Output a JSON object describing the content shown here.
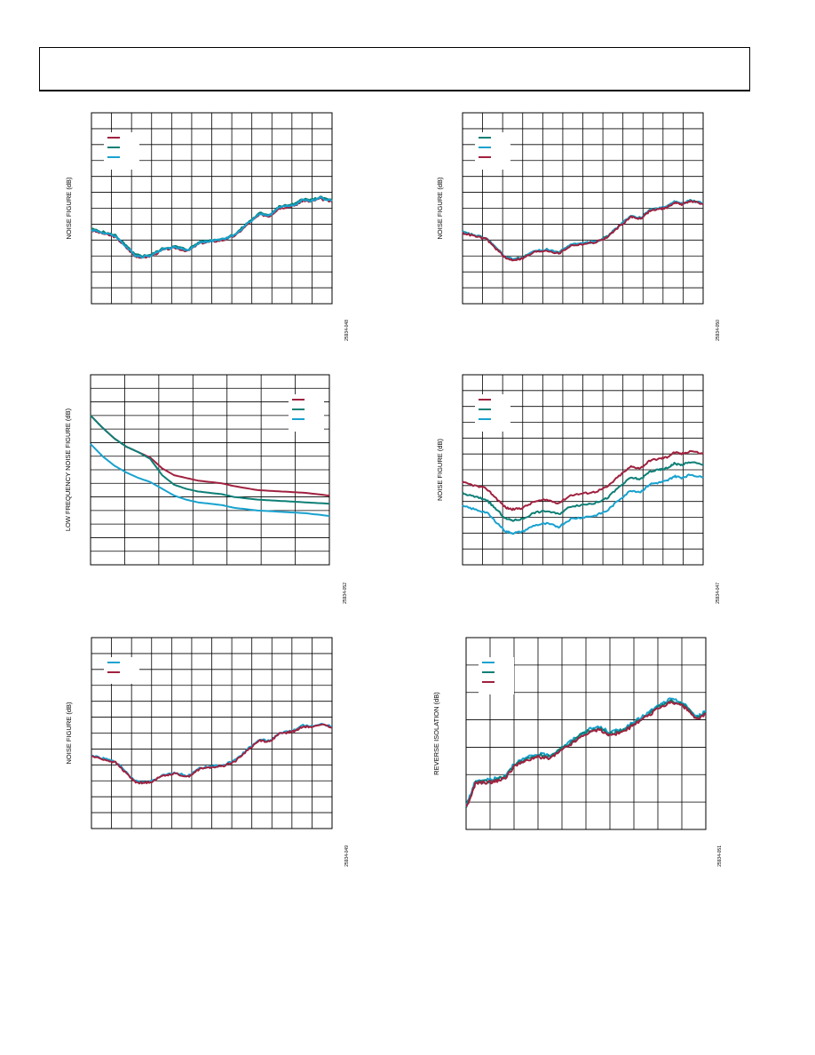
{
  "colors": {
    "red": "#a0213f",
    "green": "#0d7f76",
    "blue": "#18a2cf",
    "grid": "#000000"
  },
  "chart_data": [
    {
      "id": "top-left",
      "type": "line",
      "ylabel": "NOISE FIGURE (dB)",
      "fig_id": "25934-048",
      "grid": true,
      "rows": 12,
      "cols": 12,
      "ylim": [
        0,
        12
      ],
      "xlim": [
        0,
        1
      ],
      "legend": "top-left",
      "series": [
        {
          "color": "red",
          "x": [
            0,
            0.05,
            0.1,
            0.14,
            0.18,
            0.21,
            0.25,
            0.3,
            0.35,
            0.4,
            0.45,
            0.5,
            0.55,
            0.6,
            0.65,
            0.7,
            0.74,
            0.78,
            0.82,
            0.85,
            0.88,
            0.91,
            0.95,
            1
          ],
          "y": [
            4.6,
            4.4,
            4.2,
            3.6,
            3.0,
            2.9,
            3.0,
            3.4,
            3.5,
            3.3,
            3.8,
            3.9,
            4.0,
            4.3,
            5.0,
            5.6,
            5.5,
            6.0,
            6.1,
            6.2,
            6.5,
            6.4,
            6.6,
            6.4
          ]
        },
        {
          "color": "green",
          "x": [
            0,
            0.05,
            0.1,
            0.14,
            0.18,
            0.21,
            0.25,
            0.3,
            0.35,
            0.4,
            0.45,
            0.5,
            0.55,
            0.6,
            0.65,
            0.7,
            0.74,
            0.78,
            0.82,
            0.85,
            0.88,
            0.91,
            0.95,
            1
          ],
          "y": [
            4.7,
            4.5,
            4.3,
            3.7,
            3.1,
            3.0,
            3.1,
            3.5,
            3.6,
            3.4,
            3.9,
            4.0,
            4.1,
            4.4,
            5.1,
            5.7,
            5.6,
            6.1,
            6.2,
            6.3,
            6.6,
            6.5,
            6.7,
            6.5
          ]
        },
        {
          "color": "blue",
          "x": [
            0,
            0.05,
            0.1,
            0.14,
            0.18,
            0.21,
            0.25,
            0.3,
            0.35,
            0.4,
            0.45,
            0.5,
            0.55,
            0.6,
            0.65,
            0.7,
            0.74,
            0.78,
            0.82,
            0.85,
            0.88,
            0.91,
            0.95,
            1
          ],
          "y": [
            4.65,
            4.45,
            4.25,
            3.65,
            3.05,
            2.95,
            3.05,
            3.45,
            3.55,
            3.35,
            3.85,
            3.95,
            4.05,
            4.35,
            5.05,
            5.65,
            5.55,
            6.05,
            6.15,
            6.25,
            6.55,
            6.45,
            6.65,
            6.45
          ]
        }
      ]
    },
    {
      "id": "top-right",
      "type": "line",
      "ylabel": "NOISE FIGURE (dB)",
      "fig_id": "25934-050",
      "grid": true,
      "rows": 12,
      "cols": 12,
      "ylim": [
        0,
        12
      ],
      "xlim": [
        0,
        1
      ],
      "legend": "top-left",
      "series": [
        {
          "color": "green",
          "x": [
            0,
            0.05,
            0.1,
            0.14,
            0.18,
            0.21,
            0.25,
            0.3,
            0.35,
            0.4,
            0.45,
            0.5,
            0.55,
            0.6,
            0.65,
            0.7,
            0.74,
            0.78,
            0.82,
            0.85,
            0.88,
            0.91,
            0.95,
            1
          ],
          "y": [
            4.5,
            4.3,
            4.1,
            3.5,
            2.9,
            2.8,
            2.9,
            3.3,
            3.4,
            3.2,
            3.7,
            3.8,
            3.9,
            4.2,
            4.9,
            5.5,
            5.4,
            5.9,
            6.0,
            6.1,
            6.4,
            6.3,
            6.5,
            6.3
          ]
        },
        {
          "color": "blue",
          "x": [
            0,
            0.05,
            0.1,
            0.14,
            0.18,
            0.21,
            0.25,
            0.3,
            0.35,
            0.4,
            0.45,
            0.5,
            0.55,
            0.6,
            0.65,
            0.7,
            0.74,
            0.78,
            0.82,
            0.85,
            0.88,
            0.91,
            0.95,
            1
          ],
          "y": [
            4.5,
            4.3,
            4.1,
            3.5,
            2.9,
            2.8,
            2.9,
            3.3,
            3.4,
            3.2,
            3.7,
            3.8,
            3.9,
            4.2,
            4.9,
            5.5,
            5.4,
            5.9,
            6.0,
            6.1,
            6.4,
            6.3,
            6.5,
            6.3
          ]
        },
        {
          "color": "red",
          "x": [
            0,
            0.05,
            0.1,
            0.14,
            0.18,
            0.21,
            0.25,
            0.3,
            0.35,
            0.4,
            0.45,
            0.5,
            0.55,
            0.6,
            0.65,
            0.7,
            0.74,
            0.78,
            0.82,
            0.85,
            0.88,
            0.91,
            0.95,
            1
          ],
          "y": [
            4.45,
            4.25,
            4.05,
            3.45,
            2.85,
            2.75,
            2.85,
            3.25,
            3.35,
            3.15,
            3.65,
            3.75,
            3.85,
            4.15,
            4.85,
            5.45,
            5.35,
            5.85,
            5.95,
            6.05,
            6.35,
            6.25,
            6.45,
            6.25
          ]
        }
      ]
    },
    {
      "id": "mid-left",
      "type": "line",
      "ylabel": "LOW FREQUENCY NOISE FIGURE (dB)",
      "fig_id": "25934-052",
      "grid": true,
      "rows": 14,
      "cols": 7,
      "ylim": [
        0,
        14
      ],
      "xlim": [
        0,
        1
      ],
      "legend": "top-right",
      "series": [
        {
          "color": "red",
          "x": [
            0,
            0.05,
            0.1,
            0.15,
            0.2,
            0.25,
            0.3,
            0.35,
            0.4,
            0.45,
            0.5,
            0.55,
            0.6,
            0.7,
            0.8,
            0.9,
            1
          ],
          "y": [
            11.0,
            10.1,
            9.3,
            8.7,
            8.3,
            7.9,
            7.1,
            6.6,
            6.4,
            6.2,
            6.1,
            6.0,
            5.8,
            5.5,
            5.4,
            5.3,
            5.1
          ]
        },
        {
          "color": "green",
          "x": [
            0,
            0.05,
            0.1,
            0.15,
            0.2,
            0.25,
            0.3,
            0.35,
            0.4,
            0.45,
            0.5,
            0.55,
            0.6,
            0.7,
            0.8,
            0.9,
            1
          ],
          "y": [
            11.0,
            10.1,
            9.3,
            8.7,
            8.3,
            7.8,
            6.6,
            5.9,
            5.6,
            5.4,
            5.3,
            5.2,
            5.0,
            4.8,
            4.7,
            4.6,
            4.5
          ]
        },
        {
          "color": "blue",
          "x": [
            0,
            0.05,
            0.1,
            0.15,
            0.2,
            0.25,
            0.3,
            0.35,
            0.4,
            0.45,
            0.5,
            0.55,
            0.6,
            0.7,
            0.8,
            0.9,
            1
          ],
          "y": [
            8.9,
            8.0,
            7.3,
            6.8,
            6.4,
            6.1,
            5.6,
            5.1,
            4.8,
            4.6,
            4.5,
            4.4,
            4.2,
            4.0,
            3.9,
            3.8,
            3.6
          ]
        }
      ]
    },
    {
      "id": "mid-right",
      "type": "line",
      "ylabel": "NOISE FIGURE (dB)",
      "fig_id": "25934-047",
      "grid": true,
      "rows": 12,
      "cols": 12,
      "ylim": [
        0,
        12
      ],
      "xlim": [
        0,
        1
      ],
      "legend": "top-left",
      "series": [
        {
          "color": "red",
          "x": [
            0,
            0.05,
            0.1,
            0.14,
            0.18,
            0.21,
            0.25,
            0.3,
            0.35,
            0.4,
            0.45,
            0.5,
            0.55,
            0.6,
            0.65,
            0.7,
            0.74,
            0.78,
            0.82,
            0.85,
            0.88,
            0.91,
            0.95,
            1
          ],
          "y": [
            5.2,
            5.0,
            4.8,
            4.2,
            3.6,
            3.5,
            3.6,
            4.0,
            4.1,
            3.9,
            4.4,
            4.5,
            4.6,
            4.9,
            5.6,
            6.2,
            6.1,
            6.6,
            6.7,
            6.8,
            7.1,
            7.0,
            7.2,
            7.0
          ]
        },
        {
          "color": "green",
          "x": [
            0,
            0.05,
            0.1,
            0.14,
            0.18,
            0.21,
            0.25,
            0.3,
            0.35,
            0.4,
            0.45,
            0.5,
            0.55,
            0.6,
            0.65,
            0.7,
            0.74,
            0.78,
            0.82,
            0.85,
            0.88,
            0.91,
            0.95,
            1
          ],
          "y": [
            4.5,
            4.3,
            4.1,
            3.5,
            2.9,
            2.8,
            2.9,
            3.3,
            3.4,
            3.2,
            3.7,
            3.8,
            3.9,
            4.2,
            4.9,
            5.5,
            5.4,
            5.9,
            6.0,
            6.1,
            6.4,
            6.3,
            6.5,
            6.3
          ]
        },
        {
          "color": "blue",
          "x": [
            0,
            0.05,
            0.1,
            0.14,
            0.18,
            0.21,
            0.25,
            0.3,
            0.35,
            0.4,
            0.45,
            0.5,
            0.55,
            0.6,
            0.65,
            0.7,
            0.74,
            0.78,
            0.82,
            0.85,
            0.88,
            0.91,
            0.95,
            1
          ],
          "y": [
            3.7,
            3.5,
            3.3,
            2.7,
            2.1,
            2.0,
            2.1,
            2.5,
            2.6,
            2.4,
            2.9,
            3.0,
            3.1,
            3.4,
            4.1,
            4.7,
            4.6,
            5.1,
            5.2,
            5.3,
            5.6,
            5.5,
            5.7,
            5.5
          ]
        }
      ]
    },
    {
      "id": "bottom-left",
      "type": "line",
      "ylabel": "NOISE FIGURE (dB)",
      "fig_id": "25934-049",
      "grid": true,
      "rows": 12,
      "cols": 12,
      "ylim": [
        0,
        12
      ],
      "xlim": [
        0,
        1
      ],
      "legend": "top-left",
      "series": [
        {
          "color": "blue",
          "x": [
            0,
            0.05,
            0.1,
            0.14,
            0.18,
            0.21,
            0.25,
            0.3,
            0.35,
            0.4,
            0.45,
            0.5,
            0.55,
            0.6,
            0.65,
            0.7,
            0.74,
            0.78,
            0.82,
            0.85,
            0.88,
            0.91,
            0.95,
            1
          ],
          "y": [
            4.6,
            4.4,
            4.2,
            3.6,
            3.0,
            2.9,
            3.0,
            3.4,
            3.5,
            3.3,
            3.8,
            3.9,
            4.0,
            4.3,
            5.0,
            5.6,
            5.5,
            6.0,
            6.1,
            6.2,
            6.5,
            6.4,
            6.6,
            6.4
          ]
        },
        {
          "color": "red",
          "x": [
            0,
            0.05,
            0.1,
            0.14,
            0.18,
            0.21,
            0.25,
            0.3,
            0.35,
            0.4,
            0.45,
            0.5,
            0.55,
            0.6,
            0.65,
            0.7,
            0.74,
            0.78,
            0.82,
            0.85,
            0.88,
            0.91,
            0.95,
            1
          ],
          "y": [
            4.55,
            4.35,
            4.15,
            3.55,
            2.95,
            2.85,
            2.95,
            3.35,
            3.45,
            3.25,
            3.75,
            3.85,
            3.95,
            4.25,
            4.95,
            5.55,
            5.45,
            5.95,
            6.05,
            6.15,
            6.45,
            6.35,
            6.55,
            6.35
          ]
        }
      ]
    },
    {
      "id": "bottom-right",
      "type": "line",
      "ylabel": "REVERSE ISOLATION (dB)",
      "fig_id": "25934-051",
      "grid": true,
      "rows": 7,
      "cols": 10,
      "ylim": [
        0,
        7
      ],
      "xlim": [
        0,
        1
      ],
      "legend": "top-left",
      "series": [
        {
          "color": "blue",
          "x": [
            0,
            0.02,
            0.04,
            0.08,
            0.12,
            0.16,
            0.2,
            0.25,
            0.3,
            0.35,
            0.4,
            0.45,
            0.5,
            0.55,
            0.6,
            0.65,
            0.7,
            0.75,
            0.8,
            0.85,
            0.9,
            0.93,
            0.96,
            1
          ],
          "y": [
            0.9,
            1.3,
            1.8,
            1.8,
            1.85,
            1.95,
            2.4,
            2.6,
            2.75,
            2.7,
            3.0,
            3.3,
            3.6,
            3.75,
            3.55,
            3.65,
            3.9,
            4.2,
            4.5,
            4.75,
            4.65,
            4.4,
            4.1,
            4.3
          ]
        },
        {
          "color": "green",
          "x": [
            0,
            0.02,
            0.04,
            0.08,
            0.12,
            0.16,
            0.2,
            0.25,
            0.3,
            0.35,
            0.4,
            0.45,
            0.5,
            0.55,
            0.6,
            0.65,
            0.7,
            0.75,
            0.8,
            0.85,
            0.9,
            0.93,
            0.96,
            1
          ],
          "y": [
            0.85,
            1.25,
            1.75,
            1.75,
            1.8,
            1.9,
            2.35,
            2.55,
            2.7,
            2.65,
            2.95,
            3.25,
            3.55,
            3.7,
            3.5,
            3.6,
            3.85,
            4.15,
            4.45,
            4.7,
            4.6,
            4.35,
            4.05,
            4.25
          ]
        },
        {
          "color": "red",
          "x": [
            0,
            0.02,
            0.04,
            0.08,
            0.12,
            0.16,
            0.2,
            0.25,
            0.3,
            0.35,
            0.4,
            0.45,
            0.5,
            0.55,
            0.6,
            0.65,
            0.7,
            0.75,
            0.8,
            0.85,
            0.9,
            0.93,
            0.96,
            1
          ],
          "y": [
            0.8,
            1.2,
            1.7,
            1.7,
            1.75,
            1.85,
            2.3,
            2.5,
            2.65,
            2.6,
            2.9,
            3.2,
            3.5,
            3.65,
            3.45,
            3.55,
            3.8,
            4.1,
            4.4,
            4.65,
            4.55,
            4.3,
            4.0,
            4.2
          ]
        }
      ]
    }
  ]
}
